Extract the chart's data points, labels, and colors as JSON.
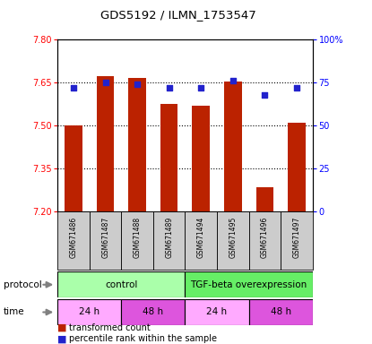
{
  "title": "GDS5192 / ILMN_1753547",
  "samples": [
    "GSM671486",
    "GSM671487",
    "GSM671488",
    "GSM671489",
    "GSM671494",
    "GSM671495",
    "GSM671496",
    "GSM671497"
  ],
  "bar_values": [
    7.5,
    7.672,
    7.665,
    7.575,
    7.57,
    7.655,
    7.285,
    7.51
  ],
  "percentile_values": [
    72,
    75,
    74,
    72,
    72,
    76,
    68,
    72
  ],
  "ymin": 7.2,
  "ymax": 7.8,
  "yticks": [
    7.2,
    7.35,
    7.5,
    7.65,
    7.8
  ],
  "right_yticks": [
    0,
    25,
    50,
    75,
    100
  ],
  "bar_color": "#bb2200",
  "dot_color": "#2222cc",
  "protocol_labels": [
    [
      "control",
      0,
      4
    ],
    [
      "TGF-beta overexpression",
      4,
      8
    ]
  ],
  "protocol_color_left": "#aaffaa",
  "protocol_color_right": "#66ee66",
  "time_groups": [
    [
      "24 h",
      0,
      2
    ],
    [
      "48 h",
      2,
      4
    ],
    [
      "24 h",
      4,
      6
    ],
    [
      "48 h",
      6,
      8
    ]
  ],
  "time_color_light": "#ffaaff",
  "time_color_dark": "#dd55dd",
  "sample_box_color": "#cccccc",
  "grid_ticks": [
    7.35,
    7.5,
    7.65
  ]
}
